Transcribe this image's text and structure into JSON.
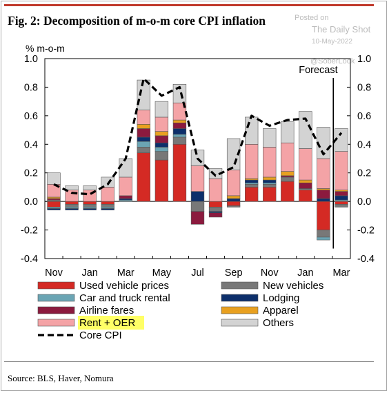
{
  "title": "Fig. 2:  Decomposition of m-o-m core CPI inflation",
  "watermark": {
    "posted": "Posted on",
    "outlet": "The Daily Shot",
    "date": "10-May-2022",
    "handle": "@SoberLook"
  },
  "source": "Source: BLS, Haver, Nomura",
  "chart_data": {
    "type": "bar",
    "stacked": true,
    "unit_label": "% m-o-m",
    "annotation": "Forecast",
    "ylim": [
      -0.4,
      1.0
    ],
    "y_ticks": [
      "1.0",
      "0.8",
      "0.6",
      "0.4",
      "0.2",
      "0.0",
      "-0.2",
      "-0.4"
    ],
    "y_tick_values": [
      1.0,
      0.8,
      0.6,
      0.4,
      0.2,
      0.0,
      -0.2,
      -0.4
    ],
    "x_tick_labels": [
      "Nov",
      "Jan",
      "Mar",
      "May",
      "Jul",
      "Sep",
      "Nov",
      "Jan",
      "Mar"
    ],
    "x_tick_positions": [
      0,
      2,
      4,
      6,
      8,
      10,
      12,
      14,
      16
    ],
    "forecast_from_index": 17,
    "legend_placement": "bottom",
    "series": [
      {
        "name": "Used vehicle prices",
        "color": "#d42a24",
        "values": [
          -0.04,
          -0.02,
          -0.02,
          -0.02,
          0.0,
          0.34,
          0.29,
          0.4,
          0.0,
          -0.04,
          -0.03,
          0.1,
          0.1,
          0.14,
          0.08,
          -0.2,
          -0.02
        ]
      },
      {
        "name": "New vehicles",
        "color": "#787878",
        "values": [
          0.01,
          -0.02,
          -0.02,
          -0.02,
          0.0,
          0.04,
          0.06,
          0.05,
          -0.07,
          -0.03,
          -0.01,
          0.02,
          0.02,
          0.03,
          0.01,
          -0.05,
          -0.02
        ]
      },
      {
        "name": "Car and truck rental",
        "color": "#6ba5b4",
        "values": [
          -0.01,
          -0.01,
          -0.01,
          -0.01,
          0.01,
          0.04,
          0.03,
          0.02,
          0.0,
          0.0,
          0.0,
          0.01,
          0.01,
          0.0,
          0.0,
          -0.02,
          0.01
        ]
      },
      {
        "name": "Lodging",
        "color": "#0d2f6b",
        "values": [
          -0.01,
          -0.01,
          -0.01,
          -0.01,
          0.01,
          0.03,
          0.03,
          0.04,
          0.07,
          -0.01,
          0.02,
          0.02,
          0.02,
          0.0,
          0.0,
          0.02,
          0.03
        ]
      },
      {
        "name": "Airline fares",
        "color": "#8b1a3e",
        "values": [
          0.01,
          0.0,
          0.0,
          0.0,
          0.02,
          0.06,
          0.05,
          0.04,
          -0.09,
          -0.03,
          0.0,
          0.0,
          0.0,
          0.01,
          0.04,
          0.06,
          0.03
        ]
      },
      {
        "name": "Apparel",
        "color": "#e8a020",
        "values": [
          0.01,
          0.0,
          0.0,
          0.0,
          0.0,
          0.03,
          0.03,
          0.02,
          0.0,
          0.0,
          0.02,
          0.01,
          0.02,
          0.03,
          0.02,
          0.01,
          0.01
        ]
      },
      {
        "name": "Rent + OER",
        "color": "#f4a3a6",
        "values": [
          0.09,
          0.08,
          0.08,
          0.1,
          0.13,
          0.1,
          0.1,
          0.12,
          0.18,
          0.16,
          0.18,
          0.24,
          0.21,
          0.2,
          0.22,
          0.21,
          0.27
        ]
      },
      {
        "name": "Others",
        "color": "#d3d3d3",
        "values": [
          0.08,
          0.03,
          0.03,
          0.07,
          0.13,
          0.21,
          0.11,
          0.13,
          0.11,
          0.07,
          0.22,
          0.19,
          0.13,
          0.15,
          0.26,
          0.22,
          0.16
        ]
      }
    ],
    "line_series": {
      "name": "Core CPI",
      "color": "#000000",
      "style": "dashed",
      "values": [
        0.12,
        0.06,
        0.05,
        0.12,
        0.3,
        0.86,
        0.74,
        0.8,
        0.3,
        0.18,
        0.24,
        0.6,
        0.53,
        0.57,
        0.58,
        0.33,
        0.48
      ]
    },
    "legend": {
      "left": [
        "Used vehicle prices",
        "Car and truck rental",
        "Airline fares",
        "Rent + OER",
        "Core CPI"
      ],
      "right": [
        "New vehicles",
        "Lodging",
        "Apparel",
        "Others"
      ],
      "highlighted": "Rent + OER",
      "highlight_color": "#ffff66"
    }
  }
}
